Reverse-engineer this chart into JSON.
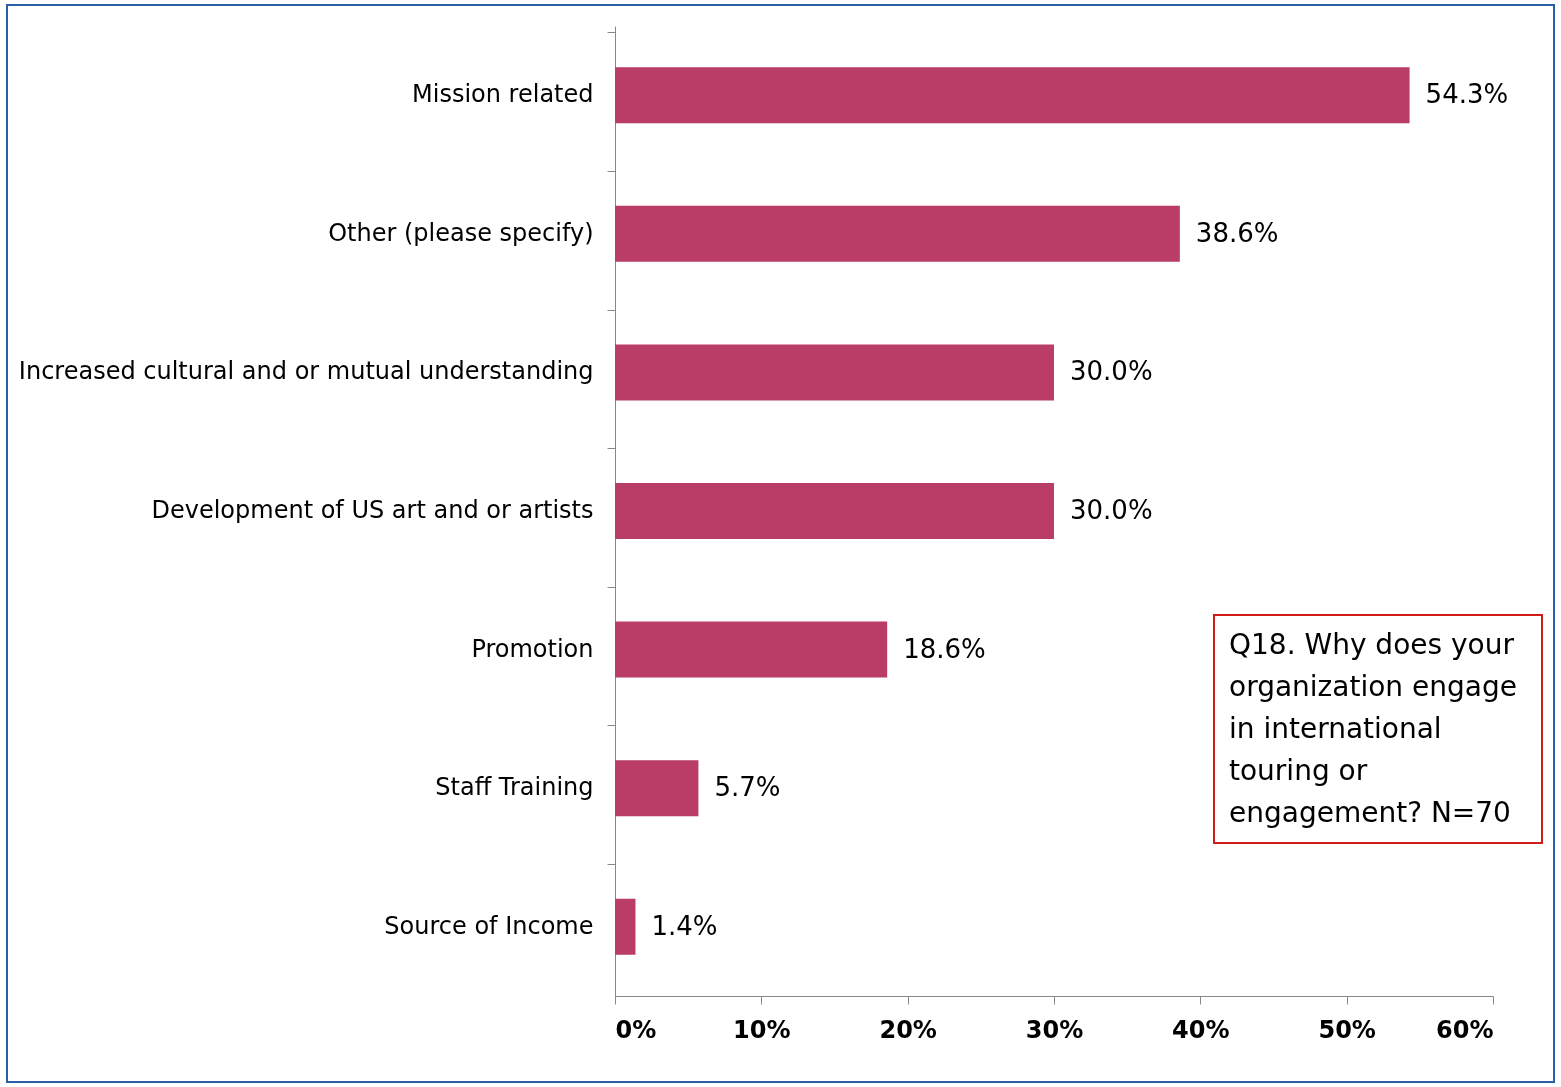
{
  "chart_data": {
    "type": "bar",
    "orientation": "horizontal",
    "categories": [
      "Mission related",
      "Other (please specify)",
      "Increased cultural and or mutual understanding",
      "Development of US art and or artists",
      "Promotion",
      "Staff Training",
      "Source of Income"
    ],
    "values": [
      54.3,
      38.6,
      30.0,
      30.0,
      18.6,
      5.7,
      1.4
    ],
    "value_labels": [
      "54.3%",
      "38.6%",
      "30.0%",
      "30.0%",
      "18.6%",
      "5.7%",
      "1.4%"
    ],
    "color": "#b93d66",
    "xlim": [
      0,
      60
    ],
    "xticks": [
      {
        "value": 0,
        "label": "0%"
      },
      {
        "value": 10,
        "label": "10%"
      },
      {
        "value": 20,
        "label": "20%"
      },
      {
        "value": 30,
        "label": "30%"
      },
      {
        "value": 40,
        "label": "40%"
      },
      {
        "value": 50,
        "label": "50%"
      },
      {
        "value": 60,
        "label": "60%"
      }
    ],
    "grid": false,
    "annotations": [
      "Q18. Why does your organization engage in international touring or engagement? N=70"
    ]
  }
}
